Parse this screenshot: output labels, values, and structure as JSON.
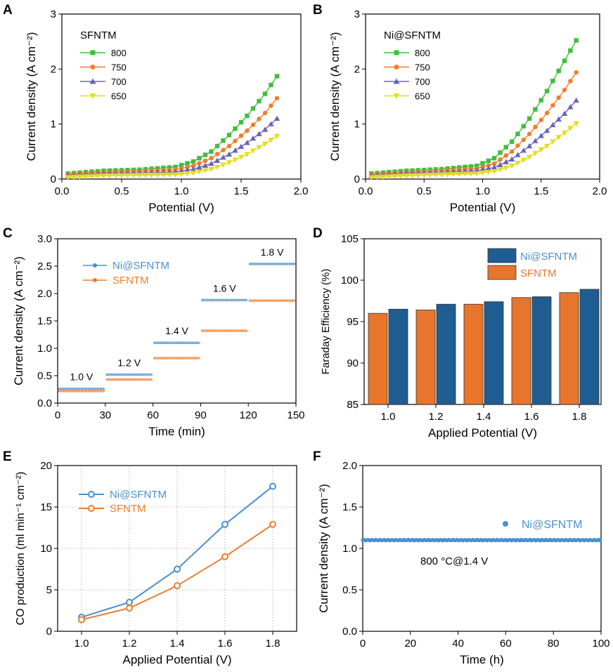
{
  "colors": {
    "green": "#3fbe3c",
    "orange": "#ef7d2c",
    "purple": "#6a63b9",
    "yellow": "#e6dc1a",
    "blue": "#4a90d0",
    "bar_orange": "#e8752c",
    "bar_blue": "#1f5c92"
  },
  "chart_data": [
    {
      "panel": "A",
      "type": "line",
      "title": "",
      "legend_title": "SFNTM",
      "xlabel": "Potential (V)",
      "ylabel": "Current density (A cm⁻²)",
      "xlim": [
        0,
        2.0
      ],
      "ylim": [
        0,
        3
      ],
      "xticks": [
        "0.0",
        "0.5",
        "1.0",
        "1.5",
        "2.0"
      ],
      "yticks": [
        "0",
        "1",
        "2",
        "3"
      ],
      "x": [
        0.05,
        0.35,
        0.65,
        0.95,
        1.1,
        1.25,
        1.4,
        1.55,
        1.7,
        1.8
      ],
      "series": [
        {
          "name": "800",
          "color": "green",
          "marker": "square",
          "values": [
            0.1,
            0.15,
            0.17,
            0.22,
            0.32,
            0.5,
            0.8,
            1.15,
            1.55,
            1.87
          ]
        },
        {
          "name": "750",
          "color": "orange",
          "marker": "circle",
          "values": [
            0.08,
            0.12,
            0.14,
            0.17,
            0.24,
            0.38,
            0.6,
            0.88,
            1.2,
            1.47
          ]
        },
        {
          "name": "700",
          "color": "purple",
          "marker": "triangle-up",
          "values": [
            0.06,
            0.1,
            0.11,
            0.13,
            0.18,
            0.28,
            0.45,
            0.66,
            0.9,
            1.1
          ]
        },
        {
          "name": "650",
          "color": "yellow",
          "marker": "triangle-down",
          "values": [
            0.03,
            0.06,
            0.07,
            0.08,
            0.11,
            0.18,
            0.3,
            0.45,
            0.64,
            0.78
          ]
        }
      ]
    },
    {
      "panel": "B",
      "type": "line",
      "title": "",
      "legend_title": "Ni@SFNTM",
      "xlabel": "Potential (V)",
      "ylabel": "Current density (A cm⁻²)",
      "xlim": [
        0,
        2.0
      ],
      "ylim": [
        0,
        3
      ],
      "xticks": [
        "0.0",
        "0.5",
        "1.0",
        "1.5",
        "2.0"
      ],
      "yticks": [
        "0",
        "1",
        "2",
        "3"
      ],
      "x": [
        0.05,
        0.35,
        0.65,
        0.95,
        1.1,
        1.25,
        1.4,
        1.55,
        1.7,
        1.8
      ],
      "series": [
        {
          "name": "800",
          "color": "green",
          "marker": "square",
          "values": [
            0.1,
            0.15,
            0.18,
            0.24,
            0.38,
            0.68,
            1.1,
            1.6,
            2.15,
            2.52
          ]
        },
        {
          "name": "750",
          "color": "orange",
          "marker": "circle",
          "values": [
            0.08,
            0.12,
            0.15,
            0.19,
            0.28,
            0.5,
            0.82,
            1.2,
            1.62,
            1.94
          ]
        },
        {
          "name": "700",
          "color": "purple",
          "marker": "triangle-up",
          "values": [
            0.06,
            0.1,
            0.12,
            0.15,
            0.21,
            0.36,
            0.6,
            0.88,
            1.19,
            1.43
          ]
        },
        {
          "name": "650",
          "color": "yellow",
          "marker": "triangle-down",
          "values": [
            0.03,
            0.06,
            0.08,
            0.1,
            0.14,
            0.24,
            0.4,
            0.6,
            0.84,
            1.01
          ]
        }
      ]
    },
    {
      "panel": "C",
      "type": "scatter",
      "title": "",
      "xlabel": "Time (min)",
      "ylabel": "Current density (A cm⁻²)",
      "xlim": [
        0,
        150
      ],
      "ylim": [
        0,
        3.0
      ],
      "xticks": [
        "0",
        "30",
        "60",
        "90",
        "120",
        "150"
      ],
      "yticks": [
        "0.0",
        "0.5",
        "1.0",
        "1.5",
        "2.0",
        "2.5",
        "3.0"
      ],
      "step_labels": [
        "1.0 V",
        "1.2 V",
        "1.4 V",
        "1.6 V",
        "1.8 V"
      ],
      "step_starts": [
        0,
        30,
        60,
        90,
        120
      ],
      "series": [
        {
          "name": "Ni@SFNTM",
          "color": "blue",
          "values": [
            0.26,
            0.52,
            1.1,
            1.88,
            2.54
          ]
        },
        {
          "name": "SFNTM",
          "color": "orange",
          "values": [
            0.22,
            0.43,
            0.82,
            1.32,
            1.87
          ]
        }
      ]
    },
    {
      "panel": "D",
      "type": "bar",
      "title": "",
      "xlabel": "Applied Potential (V)",
      "ylabel": "Faraday Efficiency (%)",
      "ylim": [
        85,
        105
      ],
      "yticks": [
        "85",
        "90",
        "95",
        "100",
        "105"
      ],
      "categories": [
        "1.0",
        "1.2",
        "1.4",
        "1.6",
        "1.8"
      ],
      "series": [
        {
          "name": "SFNTM",
          "color": "bar_orange",
          "values": [
            96.0,
            96.4,
            97.1,
            97.9,
            98.5
          ]
        },
        {
          "name": "Ni@SFNTM",
          "color": "bar_blue",
          "values": [
            96.5,
            97.1,
            97.4,
            98.0,
            98.9
          ]
        }
      ],
      "legend_order": [
        "Ni@SFNTM",
        "SFNTM"
      ]
    },
    {
      "panel": "E",
      "type": "line",
      "title": "",
      "xlabel": "Applied Potential (V)",
      "ylabel": "CO production (ml min⁻¹ cm⁻²)",
      "xlim": [
        0.9,
        1.9
      ],
      "ylim": [
        0,
        20
      ],
      "xticks": [
        "1.0",
        "1.2",
        "1.4",
        "1.6",
        "1.8"
      ],
      "yticks": [
        "0",
        "5",
        "10",
        "15",
        "20"
      ],
      "grid": true,
      "x": [
        1.0,
        1.2,
        1.4,
        1.6,
        1.8
      ],
      "series": [
        {
          "name": "Ni@SFNTM",
          "color": "blue",
          "values": [
            1.7,
            3.5,
            7.5,
            12.9,
            17.5
          ]
        },
        {
          "name": "SFNTM",
          "color": "orange",
          "values": [
            1.4,
            2.8,
            5.5,
            9.0,
            12.9
          ]
        }
      ]
    },
    {
      "panel": "F",
      "type": "scatter",
      "title": "",
      "xlabel": "Time (h)",
      "ylabel": "Current density (A cm⁻²)",
      "xlim": [
        0,
        100
      ],
      "ylim": [
        0,
        2.0
      ],
      "xticks": [
        "0",
        "20",
        "40",
        "60",
        "80",
        "100"
      ],
      "yticks": [
        "0.0",
        "0.5",
        "1.0",
        "1.5",
        "2.0"
      ],
      "annotation": "800 °C@1.4 V",
      "series": [
        {
          "name": "Ni@SFNTM",
          "color": "blue",
          "value": 1.1
        }
      ]
    }
  ]
}
